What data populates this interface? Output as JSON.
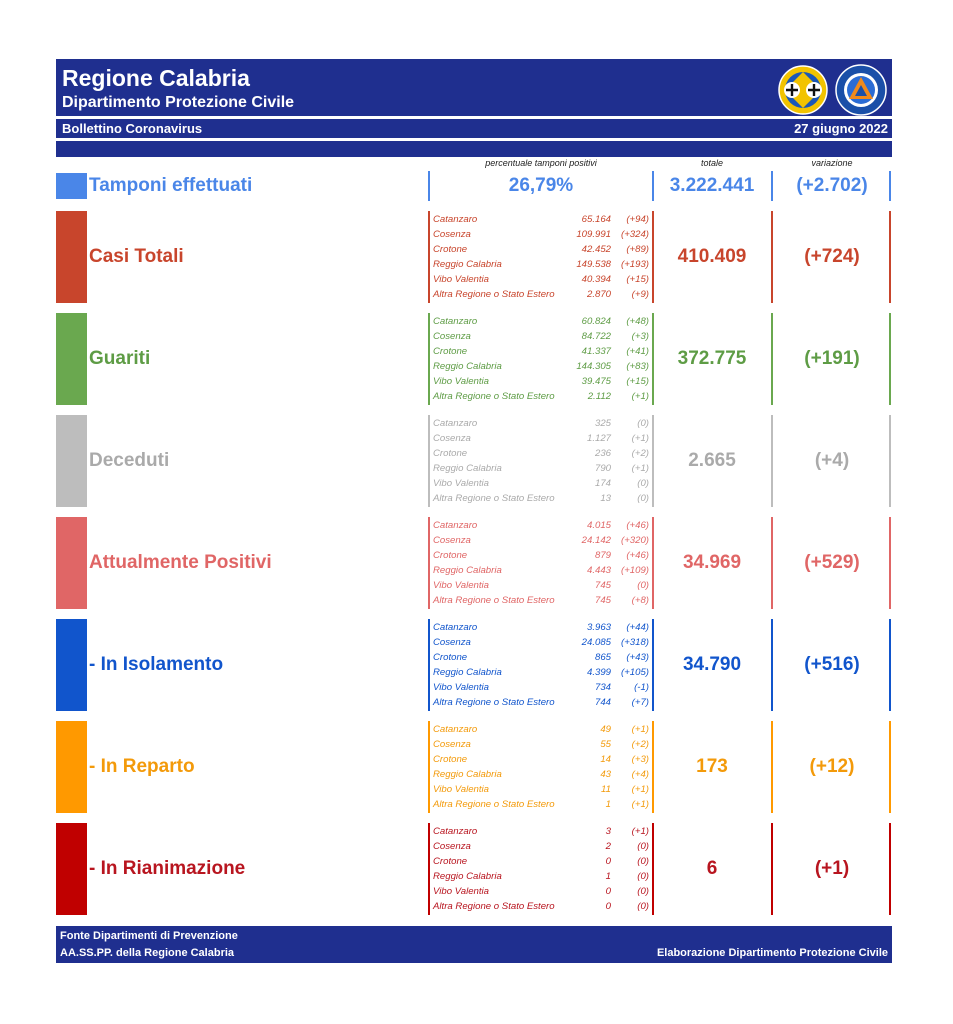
{
  "header": {
    "region": "Regione Calabria",
    "department": "Dipartimento Protezione Civile",
    "bulletin": "Bollettino Coronavirus",
    "date": "27 giugno 2022"
  },
  "column_headers": {
    "percent_positive": "percentuale tamponi positivi",
    "total": "totale",
    "variation": "variazione"
  },
  "tamponi": {
    "label": "Tamponi effettuati",
    "percent": "26,79%",
    "total": "3.222.441",
    "delta": "(+2.702)",
    "color": "#4a86e8"
  },
  "sections": [
    {
      "label": "Casi Totali",
      "total": "410.409",
      "delta": "(+724)",
      "color": "#c8452c",
      "text_color": "#c8452c",
      "rows": [
        {
          "name": "Catanzaro",
          "value": "65.164",
          "delta": "(+94)"
        },
        {
          "name": "Cosenza",
          "value": "109.991",
          "delta": "(+324)"
        },
        {
          "name": "Crotone",
          "value": "42.452",
          "delta": "(+89)"
        },
        {
          "name": "Reggio Calabria",
          "value": "149.538",
          "delta": "(+193)"
        },
        {
          "name": "Vibo Valentia",
          "value": "40.394",
          "delta": "(+15)"
        },
        {
          "name": "Altra Regione o Stato Estero",
          "value": "2.870",
          "delta": "(+9)"
        }
      ]
    },
    {
      "label": "Guariti",
      "total": "372.775",
      "delta": "(+191)",
      "color": "#6aa84f",
      "text_color": "#5e9c45",
      "rows": [
        {
          "name": "Catanzaro",
          "value": "60.824",
          "delta": "(+48)"
        },
        {
          "name": "Cosenza",
          "value": "84.722",
          "delta": "(+3)"
        },
        {
          "name": "Crotone",
          "value": "41.337",
          "delta": "(+41)"
        },
        {
          "name": "Reggio Calabria",
          "value": "144.305",
          "delta": "(+83)"
        },
        {
          "name": "Vibo Valentia",
          "value": "39.475",
          "delta": "(+15)"
        },
        {
          "name": "Altra Regione o Stato Estero",
          "value": "2.112",
          "delta": "(+1)"
        }
      ]
    },
    {
      "label": "Deceduti",
      "total": "2.665",
      "delta": "(+4)",
      "color": "#bdbdbd",
      "text_color": "#aaaaaa",
      "rows": [
        {
          "name": "Catanzaro",
          "value": "325",
          "delta": "(0)"
        },
        {
          "name": "Cosenza",
          "value": "1.127",
          "delta": "(+1)"
        },
        {
          "name": "Crotone",
          "value": "236",
          "delta": "(+2)"
        },
        {
          "name": "Reggio Calabria",
          "value": "790",
          "delta": "(+1)"
        },
        {
          "name": "Vibo Valentia",
          "value": "174",
          "delta": "(0)"
        },
        {
          "name": "Altra Regione o Stato Estero",
          "value": "13",
          "delta": "(0)"
        }
      ]
    },
    {
      "label": "Attualmente Positivi",
      "total": "34.969",
      "delta": "(+529)",
      "color": "#e06666",
      "text_color": "#e06666",
      "rows": [
        {
          "name": "Catanzaro",
          "value": "4.015",
          "delta": "(+46)"
        },
        {
          "name": "Cosenza",
          "value": "24.142",
          "delta": "(+320)"
        },
        {
          "name": "Crotone",
          "value": "879",
          "delta": "(+46)"
        },
        {
          "name": "Reggio Calabria",
          "value": "4.443",
          "delta": "(+109)"
        },
        {
          "name": "Vibo Valentia",
          "value": "745",
          "delta": "(0)"
        },
        {
          "name": "Altra Regione o Stato Estero",
          "value": "745",
          "delta": "(+8)"
        }
      ]
    },
    {
      "label": "- In Isolamento",
      "total": "34.790",
      "delta": "(+516)",
      "color": "#1155cc",
      "text_color": "#1155cc",
      "rows": [
        {
          "name": "Catanzaro",
          "value": "3.963",
          "delta": "(+44)"
        },
        {
          "name": "Cosenza",
          "value": "24.085",
          "delta": "(+318)"
        },
        {
          "name": "Crotone",
          "value": "865",
          "delta": "(+43)"
        },
        {
          "name": "Reggio Calabria",
          "value": "4.399",
          "delta": "(+105)"
        },
        {
          "name": "Vibo Valentia",
          "value": "734",
          "delta": "(-1)"
        },
        {
          "name": "Altra Regione o Stato Estero",
          "value": "744",
          "delta": "(+7)"
        }
      ]
    },
    {
      "label": "- In Reparto",
      "total": "173",
      "delta": "(+12)",
      "color": "#ff9900",
      "text_color": "#f39a0a",
      "rows": [
        {
          "name": "Catanzaro",
          "value": "49",
          "delta": "(+1)"
        },
        {
          "name": "Cosenza",
          "value": "55",
          "delta": "(+2)"
        },
        {
          "name": "Crotone",
          "value": "14",
          "delta": "(+3)"
        },
        {
          "name": "Reggio Calabria",
          "value": "43",
          "delta": "(+4)"
        },
        {
          "name": "Vibo Valentia",
          "value": "11",
          "delta": "(+1)"
        },
        {
          "name": "Altra Regione o Stato Estero",
          "value": "1",
          "delta": "(+1)"
        }
      ]
    },
    {
      "label": "- In Rianimazione",
      "total": "6",
      "delta": "(+1)",
      "color": "#c00000",
      "text_color": "#b8151f",
      "rows": [
        {
          "name": "Catanzaro",
          "value": "3",
          "delta": "(+1)"
        },
        {
          "name": "Cosenza",
          "value": "2",
          "delta": "(0)"
        },
        {
          "name": "Crotone",
          "value": "0",
          "delta": "(0)"
        },
        {
          "name": "Reggio Calabria",
          "value": "1",
          "delta": "(0)"
        },
        {
          "name": "Vibo Valentia",
          "value": "0",
          "delta": "(0)"
        },
        {
          "name": "Altra Regione o Stato Estero",
          "value": "0",
          "delta": "(0)"
        }
      ]
    }
  ],
  "footer": {
    "source_line1": "Fonte Dipartimenti di Prevenzione",
    "source_line2": "AA.SS.PP.  della Regione Calabria",
    "elaboration": "Elaborazione Dipartimento Protezione Civile"
  },
  "colors": {
    "header_bg": "#1f2f8f"
  },
  "icons": {
    "left_logo": "regione-calabria-crest-icon",
    "right_logo": "protezione-civile-logo-icon"
  }
}
